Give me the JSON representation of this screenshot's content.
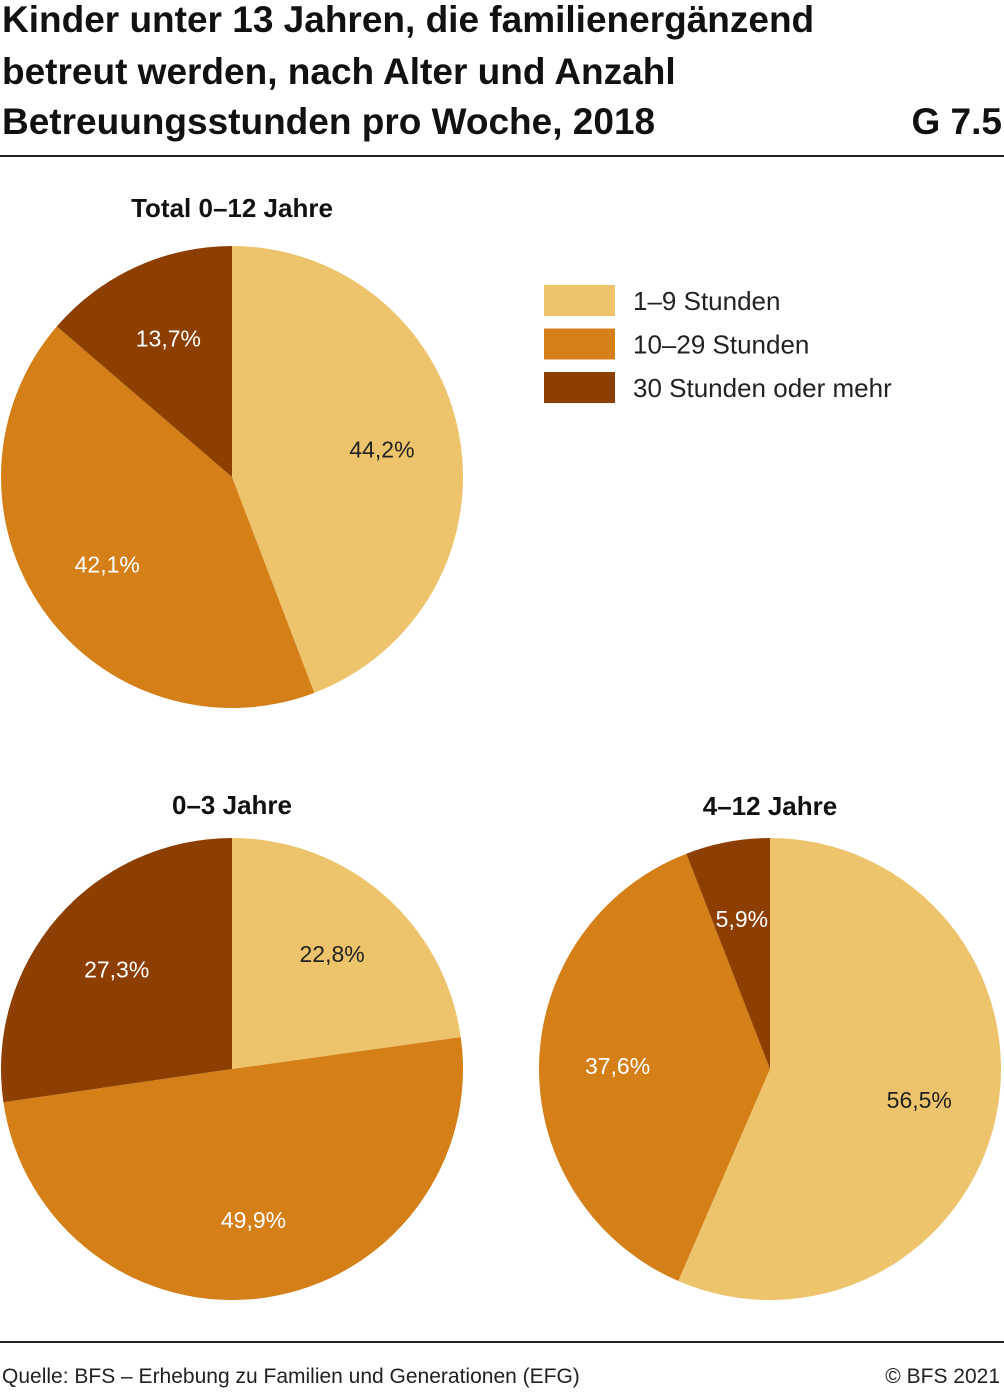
{
  "header": {
    "title": [
      "Kinder unter 13 Jahren, die familienergänzend",
      "betreut werden, nach Alter und Anzahl",
      "Betreuungsstunden pro Woche, 2018"
    ],
    "figure": "G 7.5"
  },
  "chart_data": [
    {
      "type": "pie",
      "title": "Total 0–12 Jahre",
      "categories": [
        "1–9 Stunden",
        "10–29 Stunden",
        "30 Stunden oder mehr"
      ],
      "colors": [
        "#edc46b",
        "#d47f17",
        "#8c3f00"
      ],
      "values": [
        44.2,
        42.1,
        13.7
      ],
      "value_labels": [
        "44,2%",
        "42,1%",
        "13,7%"
      ]
    },
    {
      "type": "pie",
      "title": "0–3 Jahre",
      "categories": [
        "1–9 Stunden",
        "10–29 Stunden",
        "30 Stunden oder mehr"
      ],
      "colors": [
        "#edc46b",
        "#d47f17",
        "#8c3f00"
      ],
      "values": [
        22.8,
        49.9,
        27.3
      ],
      "value_labels": [
        "22,8%",
        "49,9%",
        "27,3%"
      ]
    },
    {
      "type": "pie",
      "title": "4–12 Jahre",
      "categories": [
        "1–9 Stunden",
        "10–29 Stunden",
        "30 Stunden oder mehr"
      ],
      "colors": [
        "#edc46b",
        "#d47f17",
        "#8c3f00"
      ],
      "values": [
        56.5,
        37.6,
        5.9
      ],
      "value_labels": [
        "56,5%",
        "37,6%",
        "5,9%"
      ]
    }
  ],
  "footer": {
    "source": "Quelle: BFS – Erhebung zu Familien und Generationen (EFG)",
    "copyright": "© BFS 2021"
  }
}
